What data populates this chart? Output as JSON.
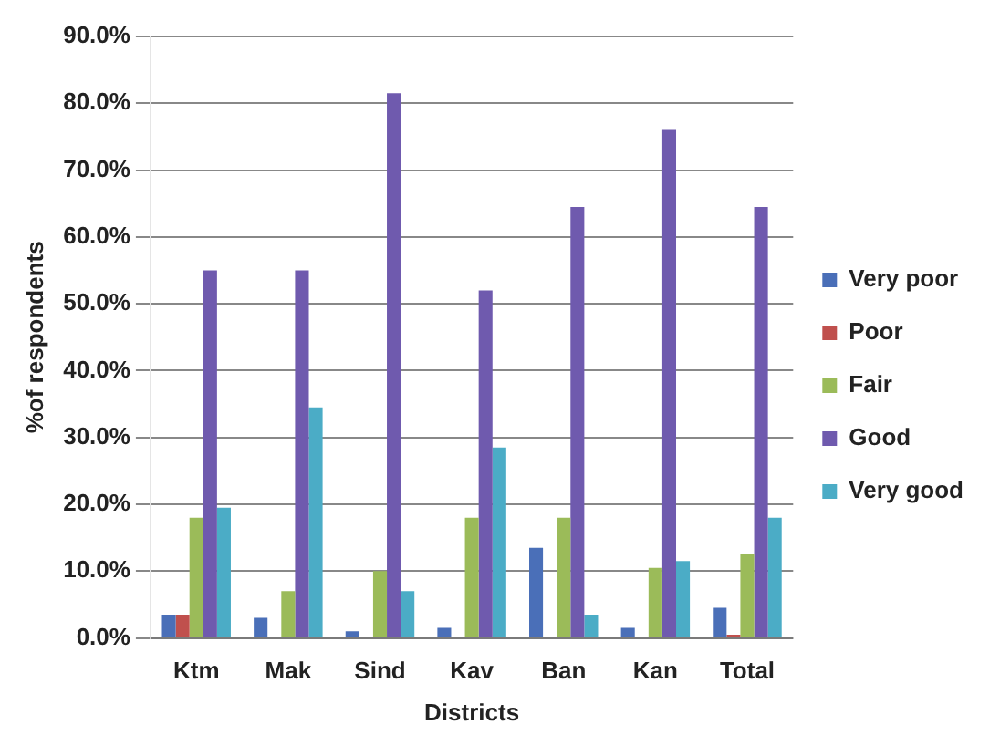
{
  "chart_data": {
    "type": "bar",
    "xlabel": "Districts",
    "ylabel": "%of respondents",
    "categories": [
      "Ktm",
      "Mak",
      "Sind",
      "Kav",
      "Ban",
      "Kan",
      "Total"
    ],
    "series": [
      {
        "name": "Very poor",
        "color": "#4a6fb8",
        "values": [
          3.5,
          3,
          1,
          1.5,
          13.5,
          1.5,
          4.5
        ]
      },
      {
        "name": "Poor",
        "color": "#c0504d",
        "values": [
          3.5,
          0,
          0,
          0,
          0,
          0,
          0.5
        ]
      },
      {
        "name": "Fair",
        "color": "#9bbb59",
        "values": [
          18,
          7,
          10,
          18,
          18,
          10.5,
          12.5
        ]
      },
      {
        "name": "Good",
        "color": "#6f5aae",
        "values": [
          55,
          55,
          81.5,
          52,
          64.5,
          76,
          64.5
        ]
      },
      {
        "name": "Very good",
        "color": "#4bacc6",
        "values": [
          19.5,
          34.5,
          7,
          28.5,
          3.5,
          11.5,
          18
        ]
      }
    ],
    "ylim": [
      0,
      90
    ],
    "yticks": [
      {
        "value": 0,
        "label": "0.0%"
      },
      {
        "value": 10,
        "label": "10.0%"
      },
      {
        "value": 20,
        "label": "20.0%"
      },
      {
        "value": 30,
        "label": "30.0%"
      },
      {
        "value": 40,
        "label": "40.0%"
      },
      {
        "value": 50,
        "label": "50.0%"
      },
      {
        "value": 60,
        "label": "60.0%"
      },
      {
        "value": 70,
        "label": "70.0%"
      },
      {
        "value": 80,
        "label": "80.0%"
      },
      {
        "value": 90,
        "label": "90.0%"
      }
    ],
    "grid": "y",
    "legend": "right"
  }
}
